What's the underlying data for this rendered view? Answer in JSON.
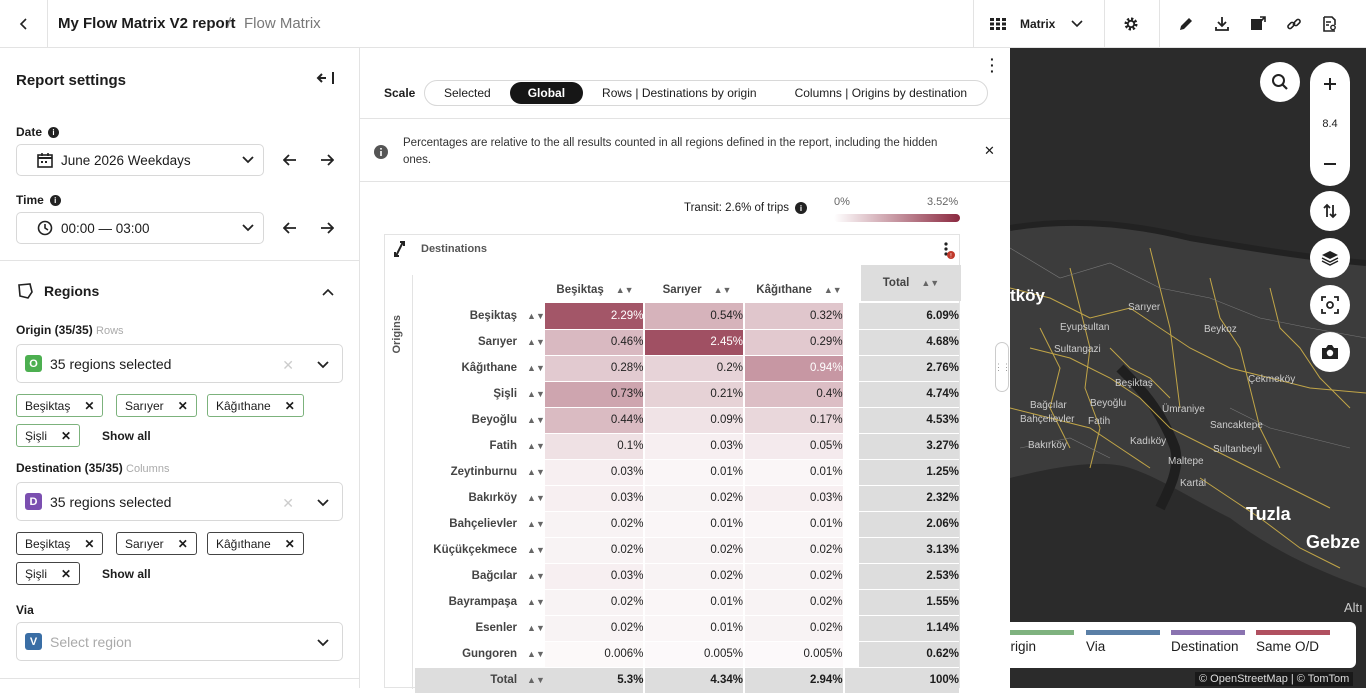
{
  "header": {
    "report_title": "My Flow Matrix V2 report",
    "separator": "/",
    "view_name": "Flow Matrix",
    "view_selector": "Matrix"
  },
  "sidebar": {
    "title": "Report settings",
    "date": {
      "label": "Date",
      "value": "June 2026 Weekdays"
    },
    "time": {
      "label": "Time",
      "value": "00:00 — 03:00"
    },
    "regions": {
      "title": "Regions",
      "origin": {
        "label": "Origin (35/35)",
        "sub": "Rows",
        "badge": "O",
        "value": "35 regions selected",
        "chips": [
          "Beşiktaş",
          "Sarıyer",
          "Kâğıthane",
          "Şişli"
        ],
        "show_all": "Show all"
      },
      "destination": {
        "label": "Destination (35/35)",
        "sub": "Columns",
        "badge": "D",
        "value": "35 regions selected",
        "chips": [
          "Beşiktaş",
          "Sarıyer",
          "Kâğıthane",
          "Şişli"
        ],
        "show_all": "Show all"
      },
      "via": {
        "label": "Via",
        "badge": "V",
        "placeholder": "Select region"
      }
    }
  },
  "main": {
    "scale_label": "Scale",
    "scale_options": [
      "Selected",
      "Global",
      "Rows | Destinations by origin",
      "Columns | Origins by destination"
    ],
    "scale_selected": "Global",
    "notice": "Percentages are relative to the all results counted in all regions defined in the report, including the hidden ones.",
    "transit": "Transit: 2.6% of trips",
    "legend_min": "0%",
    "legend_max": "3.52%"
  },
  "matrix": {
    "destinations_label": "Destinations",
    "origins_label": "Origins",
    "columns": [
      "Beşiktaş",
      "Sarıyer",
      "Kâğıthane"
    ],
    "total_label": "Total",
    "rows": [
      {
        "name": "Beşiktaş",
        "values": [
          "2.29%",
          "0.54%",
          "0.32%"
        ],
        "total": "6.09%"
      },
      {
        "name": "Sarıyer",
        "values": [
          "0.46%",
          "2.45%",
          "0.29%"
        ],
        "total": "4.68%"
      },
      {
        "name": "Kâğıthane",
        "values": [
          "0.28%",
          "0.2%",
          "0.94%"
        ],
        "total": "2.76%"
      },
      {
        "name": "Şişli",
        "values": [
          "0.73%",
          "0.21%",
          "0.4%"
        ],
        "total": "4.74%"
      },
      {
        "name": "Beyoğlu",
        "values": [
          "0.44%",
          "0.09%",
          "0.17%"
        ],
        "total": "4.53%"
      },
      {
        "name": "Fatih",
        "values": [
          "0.1%",
          "0.03%",
          "0.05%"
        ],
        "total": "3.27%"
      },
      {
        "name": "Zeytinburnu",
        "values": [
          "0.03%",
          "0.01%",
          "0.01%"
        ],
        "total": "1.25%"
      },
      {
        "name": "Bakırköy",
        "values": [
          "0.03%",
          "0.02%",
          "0.03%"
        ],
        "total": "2.32%"
      },
      {
        "name": "Bahçelievler",
        "values": [
          "0.02%",
          "0.01%",
          "0.01%"
        ],
        "total": "2.06%"
      },
      {
        "name": "Küçükçekmece",
        "values": [
          "0.02%",
          "0.02%",
          "0.02%"
        ],
        "total": "3.13%"
      },
      {
        "name": "Bağcılar",
        "values": [
          "0.03%",
          "0.02%",
          "0.02%"
        ],
        "total": "2.53%"
      },
      {
        "name": "Bayrampaşa",
        "values": [
          "0.02%",
          "0.01%",
          "0.02%"
        ],
        "total": "1.55%"
      },
      {
        "name": "Esenler",
        "values": [
          "0.02%",
          "0.01%",
          "0.02%"
        ],
        "total": "1.14%"
      },
      {
        "name": "Gungoren",
        "values": [
          "0.006%",
          "0.005%",
          "0.005%"
        ],
        "total": "0.62%"
      }
    ],
    "total_row": {
      "name": "Total",
      "values": [
        "5.3%",
        "4.34%",
        "2.94%"
      ],
      "total": "100%"
    },
    "scale_max": 3.52,
    "heat_color": "#8b2940"
  },
  "map": {
    "zoom": "8.4",
    "legend": [
      {
        "label": "Origin",
        "color": "#7fb27f"
      },
      {
        "label": "Via",
        "color": "#5a7fa6"
      },
      {
        "label": "Destination",
        "color": "#8a73b0"
      },
      {
        "label": "Same O/D",
        "color": "#b05060"
      }
    ],
    "attribution": "© OpenStreetMap | © TomTom",
    "places": [
      "tköy",
      "Sarıyer",
      "Eyupsultan",
      "Sultangazi",
      "Beykoz",
      "Beşiktaş",
      "Çekmeköy",
      "Bağcılar",
      "Beyoğlu",
      "Ümraniye",
      "Bahçelievler",
      "Fatih",
      "Sancaktepe",
      "Bakırköy",
      "Kadıköy",
      "Sultanbeyli",
      "Maltepe",
      "Kartal",
      "Tuzla",
      "Gebze",
      "Altı"
    ]
  }
}
